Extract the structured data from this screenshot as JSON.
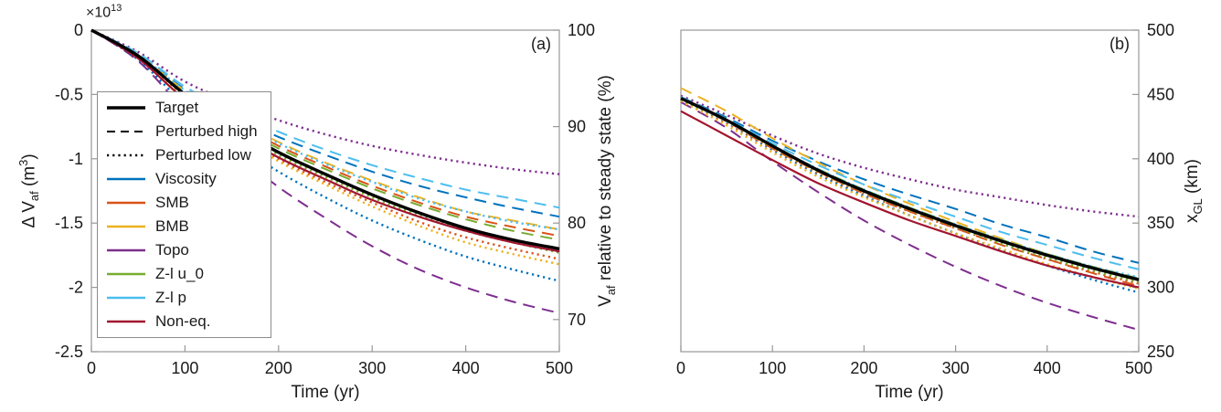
{
  "figure": {
    "background": "#ffffff",
    "panels": {
      "a": {
        "label": "(a)",
        "xlabel": "Time (yr)"
      },
      "b": {
        "label": "(b)",
        "xlabel": "Time (yr)"
      }
    }
  },
  "labels": {
    "a_left": {
      "pre": "Δ V",
      "sub": "af",
      "mid": " (m",
      "sup": "3",
      "end": ")"
    },
    "a_right": {
      "pre": "V",
      "sub": "af",
      "mid": " relative to steady state (%)",
      "sup": "",
      "end": ""
    },
    "b_right": {
      "pre": "x",
      "sub": "GL",
      "mid": " (km)",
      "sup": "",
      "end": ""
    },
    "a_multiplier": {
      "pre": "×10",
      "sup": "13",
      "mid": "",
      "end": ""
    }
  },
  "colors": {
    "target": "#000000",
    "viscosity": "#0072BD",
    "smb": "#D95319",
    "bmb": "#EDB120",
    "topo": "#7E2F8E",
    "zl_u0": "#77AC30",
    "zl_p": "#4DBEEE",
    "noneq": "#A2142F",
    "axis": "#989898",
    "text": "#1a1a1a"
  },
  "legend": {
    "position": "upper-left panel a",
    "items": [
      {
        "label": "Target",
        "color": "#000000",
        "style": "solid",
        "width": 3.4
      },
      {
        "label": "Perturbed high",
        "color": "#000000",
        "style": "dashed",
        "width": 2
      },
      {
        "label": "Perturbed low",
        "color": "#000000",
        "style": "dotted",
        "width": 2.4
      },
      {
        "label": "Viscosity",
        "color": "#0072BD",
        "style": "solid",
        "width": 2.4
      },
      {
        "label": "SMB",
        "color": "#D95319",
        "style": "solid",
        "width": 2.4
      },
      {
        "label": "BMB",
        "color": "#EDB120",
        "style": "solid",
        "width": 2.4
      },
      {
        "label": "Topo",
        "color": "#7E2F8E",
        "style": "solid",
        "width": 2.4
      },
      {
        "label": "Z-l u_0",
        "color": "#77AC30",
        "style": "solid",
        "width": 2.4
      },
      {
        "label": "Z-l p",
        "color": "#4DBEEE",
        "style": "solid",
        "width": 2.4
      },
      {
        "label": "Non-eq.",
        "color": "#A2142F",
        "style": "solid",
        "width": 2.4
      }
    ]
  },
  "chart_data": [
    {
      "type": "line",
      "panel": "a",
      "title": "",
      "xlabel": "Time (yr)",
      "ylabel": "Δ V_af (m³) ×10^13",
      "ylabel_right": "V_af relative to steady state (%)",
      "xlim": [
        0,
        500
      ],
      "ylim": [
        -2.5,
        0
      ],
      "grid": false,
      "xticks": [
        0,
        100,
        200,
        300,
        400,
        500
      ],
      "xtick_labels": [
        "0",
        "100",
        "200",
        "300",
        "400",
        "500"
      ],
      "yticks_left": {
        "values": [
          0,
          -0.5,
          -1,
          -1.5,
          -2,
          -2.5
        ],
        "labels": [
          "0",
          "-0.5",
          "-1",
          "-1.5",
          "-2",
          "-2.5"
        ]
      },
      "yticks_right": {
        "values": [
          0,
          -0.75,
          -1.5,
          -2.25
        ],
        "labels": [
          "100",
          "90",
          "80",
          "70"
        ]
      },
      "x": [
        0,
        50,
        100,
        150,
        200,
        250,
        300,
        350,
        400,
        450,
        500
      ],
      "series": [
        {
          "name": "Topo high",
          "param": "Topo",
          "role": "perturbed-high",
          "style": "dashed",
          "width": 2,
          "color": "#7E2F8E",
          "values": [
            0,
            -0.24,
            -0.62,
            -0.93,
            -1.22,
            -1.46,
            -1.68,
            -1.86,
            -2.0,
            -2.11,
            -2.2
          ]
        },
        {
          "name": "Topo low",
          "param": "Topo",
          "role": "perturbed-low",
          "style": "dotted",
          "width": 2.4,
          "color": "#7E2F8E",
          "values": [
            0,
            -0.17,
            -0.4,
            -0.56,
            -0.7,
            -0.81,
            -0.9,
            -0.97,
            -1.03,
            -1.08,
            -1.12
          ]
        },
        {
          "name": "Viscosity high",
          "param": "Viscosity",
          "role": "perturbed-high",
          "style": "dashed",
          "width": 2,
          "color": "#0072BD",
          "values": [
            0,
            -0.19,
            -0.46,
            -0.66,
            -0.83,
            -0.97,
            -1.1,
            -1.21,
            -1.3,
            -1.38,
            -1.45
          ]
        },
        {
          "name": "Viscosity low",
          "param": "Viscosity",
          "role": "perturbed-low",
          "style": "dotted",
          "width": 2.4,
          "color": "#0072BD",
          "values": [
            0,
            -0.23,
            -0.58,
            -0.86,
            -1.1,
            -1.3,
            -1.48,
            -1.63,
            -1.76,
            -1.86,
            -1.95
          ]
        },
        {
          "name": "SMB high",
          "param": "SMB",
          "role": "perturbed-high",
          "style": "dashed",
          "width": 2,
          "color": "#D95319",
          "values": [
            0,
            -0.19,
            -0.48,
            -0.7,
            -0.9,
            -1.06,
            -1.21,
            -1.34,
            -1.45,
            -1.53,
            -1.6
          ]
        },
        {
          "name": "SMB low",
          "param": "SMB",
          "role": "perturbed-low",
          "style": "dotted",
          "width": 2.4,
          "color": "#D95319",
          "values": [
            0,
            -0.21,
            -0.52,
            -0.77,
            -1.0,
            -1.18,
            -1.34,
            -1.49,
            -1.61,
            -1.7,
            -1.78
          ]
        },
        {
          "name": "BMB high",
          "param": "BMB",
          "role": "perturbed-high",
          "style": "dashed",
          "width": 2,
          "color": "#EDB120",
          "values": [
            0,
            -0.19,
            -0.47,
            -0.68,
            -0.87,
            -1.03,
            -1.17,
            -1.3,
            -1.41,
            -1.48,
            -1.55
          ]
        },
        {
          "name": "BMB low",
          "param": "BMB",
          "role": "perturbed-low",
          "style": "dotted",
          "width": 2.4,
          "color": "#EDB120",
          "values": [
            0,
            -0.21,
            -0.53,
            -0.79,
            -1.02,
            -1.2,
            -1.37,
            -1.52,
            -1.65,
            -1.74,
            -1.82
          ]
        },
        {
          "name": "Z-l u_0 high",
          "param": "Z-l u_0",
          "role": "perturbed-high",
          "style": "dashed",
          "width": 2,
          "color": "#77AC30",
          "values": [
            0,
            -0.2,
            -0.49,
            -0.72,
            -0.92,
            -1.08,
            -1.23,
            -1.36,
            -1.47,
            -1.56,
            -1.63
          ]
        },
        {
          "name": "Z-l u_0 low",
          "param": "Z-l u_0",
          "role": "perturbed-low",
          "style": "dotted",
          "width": 2.4,
          "color": "#77AC30",
          "values": [
            0,
            -0.2,
            -0.51,
            -0.75,
            -0.97,
            -1.14,
            -1.3,
            -1.44,
            -1.56,
            -1.65,
            -1.73
          ]
        },
        {
          "name": "Z-l p high",
          "param": "Z-l p",
          "role": "perturbed-high",
          "style": "dashed",
          "width": 2,
          "color": "#4DBEEE",
          "values": [
            0,
            -0.18,
            -0.44,
            -0.63,
            -0.79,
            -0.93,
            -1.05,
            -1.15,
            -1.24,
            -1.31,
            -1.38
          ]
        },
        {
          "name": "Z-l p low",
          "param": "Z-l p",
          "role": "perturbed-low",
          "style": "dotted",
          "width": 2.4,
          "color": "#4DBEEE",
          "values": [
            0,
            -0.19,
            -0.47,
            -0.69,
            -0.88,
            -1.04,
            -1.18,
            -1.31,
            -1.41,
            -1.49,
            -1.55
          ]
        },
        {
          "name": "Non-eq.",
          "param": "Non-eq.",
          "role": "solid",
          "style": "solid",
          "width": 2.2,
          "color": "#A2142F",
          "values": [
            0,
            -0.22,
            -0.54,
            -0.78,
            -0.99,
            -1.16,
            -1.32,
            -1.45,
            -1.56,
            -1.65,
            -1.72
          ]
        },
        {
          "name": "Target",
          "param": "Target",
          "role": "target",
          "style": "solid",
          "width": 3.4,
          "color": "#000000",
          "values": [
            0,
            -0.2,
            -0.5,
            -0.74,
            -0.95,
            -1.12,
            -1.28,
            -1.42,
            -1.54,
            -1.63,
            -1.7
          ]
        }
      ]
    },
    {
      "type": "line",
      "panel": "b",
      "title": "",
      "xlabel": "Time (yr)",
      "ylabel_right": "x_GL (km)",
      "xlim": [
        0,
        500
      ],
      "ylim": [
        250,
        500
      ],
      "grid": false,
      "xticks": [
        0,
        100,
        200,
        300,
        400,
        500
      ],
      "xtick_labels": [
        "0",
        "100",
        "200",
        "300",
        "400",
        "500"
      ],
      "yticks_left": null,
      "yticks_right": {
        "values": [
          500,
          450,
          400,
          350,
          300,
          250
        ],
        "labels": [
          "500",
          "450",
          "400",
          "350",
          "300",
          "250"
        ]
      },
      "x": [
        0,
        50,
        100,
        150,
        200,
        250,
        300,
        350,
        400,
        450,
        500
      ],
      "series": [
        {
          "name": "Topo high",
          "param": "Topo",
          "role": "perturbed-high",
          "style": "dashed",
          "width": 2,
          "color": "#7E2F8E",
          "values": [
            444,
            424,
            398,
            374,
            352,
            333,
            316,
            301,
            288,
            277,
            267
          ]
        },
        {
          "name": "Topo low",
          "param": "Topo",
          "role": "perturbed-low",
          "style": "dotted",
          "width": 2.4,
          "color": "#7E2F8E",
          "values": [
            449,
            434,
            418,
            404,
            393,
            384,
            376,
            370,
            364,
            359,
            355
          ]
        },
        {
          "name": "Viscosity high",
          "param": "Viscosity",
          "role": "perturbed-high",
          "style": "dashed",
          "width": 2,
          "color": "#0072BD",
          "values": [
            448,
            432,
            414,
            398,
            384,
            372,
            361,
            349,
            339,
            328,
            319
          ]
        },
        {
          "name": "Viscosity low",
          "param": "Viscosity",
          "role": "perturbed-low",
          "style": "dotted",
          "width": 2.4,
          "color": "#0072BD",
          "values": [
            446,
            428,
            407,
            388,
            371,
            356,
            342,
            329,
            317,
            306,
            296
          ]
        },
        {
          "name": "SMB high",
          "param": "SMB",
          "role": "perturbed-high",
          "style": "dashed",
          "width": 2,
          "color": "#D95319",
          "values": [
            447,
            429,
            408,
            390,
            373,
            359,
            346,
            333,
            322,
            311,
            301
          ]
        },
        {
          "name": "SMB low",
          "param": "SMB",
          "role": "perturbed-low",
          "style": "dotted",
          "width": 2.4,
          "color": "#D95319",
          "values": [
            446,
            428,
            408,
            389,
            373,
            359,
            346,
            334,
            322,
            312,
            303
          ]
        },
        {
          "name": "BMB high",
          "param": "BMB",
          "role": "perturbed-high",
          "style": "dashed",
          "width": 2,
          "color": "#EDB120",
          "values": [
            455,
            437,
            416,
            397,
            380,
            365,
            351,
            338,
            326,
            315,
            305
          ]
        },
        {
          "name": "BMB low",
          "param": "BMB",
          "role": "perturbed-low",
          "style": "dotted",
          "width": 2.4,
          "color": "#EDB120",
          "values": [
            445,
            426,
            405,
            386,
            370,
            356,
            342,
            330,
            318,
            308,
            299
          ]
        },
        {
          "name": "Z-l u_0 high",
          "param": "Z-l u_0",
          "role": "perturbed-high",
          "style": "dashed",
          "width": 2,
          "color": "#77AC30",
          "values": [
            447,
            430,
            410,
            392,
            376,
            362,
            349,
            337,
            326,
            316,
            307
          ]
        },
        {
          "name": "Z-l u_0 low",
          "param": "Z-l u_0",
          "role": "perturbed-low",
          "style": "dotted",
          "width": 2.4,
          "color": "#77AC30",
          "values": [
            446,
            429,
            409,
            390,
            374,
            360,
            347,
            334,
            323,
            313,
            304
          ]
        },
        {
          "name": "Z-l p high",
          "param": "Z-l p",
          "role": "perturbed-high",
          "style": "dashed",
          "width": 2,
          "color": "#4DBEEE",
          "values": [
            448,
            431,
            412,
            395,
            380,
            367,
            355,
            343,
            333,
            323,
            314
          ]
        },
        {
          "name": "Z-l p low",
          "param": "Z-l p",
          "role": "perturbed-low",
          "style": "dotted",
          "width": 2.4,
          "color": "#4DBEEE",
          "values": [
            447,
            429,
            410,
            392,
            376,
            362,
            349,
            337,
            326,
            316,
            308
          ]
        },
        {
          "name": "Non-eq.",
          "param": "Non-eq.",
          "role": "solid",
          "style": "solid",
          "width": 2.2,
          "color": "#A2142F",
          "values": [
            437,
            418,
            399,
            381,
            366,
            352,
            340,
            328,
            317,
            308,
            300
          ]
        },
        {
          "name": "Target",
          "param": "Target",
          "role": "target",
          "style": "solid",
          "width": 3.4,
          "color": "#000000",
          "values": [
            447,
            430,
            410,
            391,
            375,
            361,
            348,
            336,
            325,
            315,
            306
          ]
        }
      ]
    }
  ]
}
